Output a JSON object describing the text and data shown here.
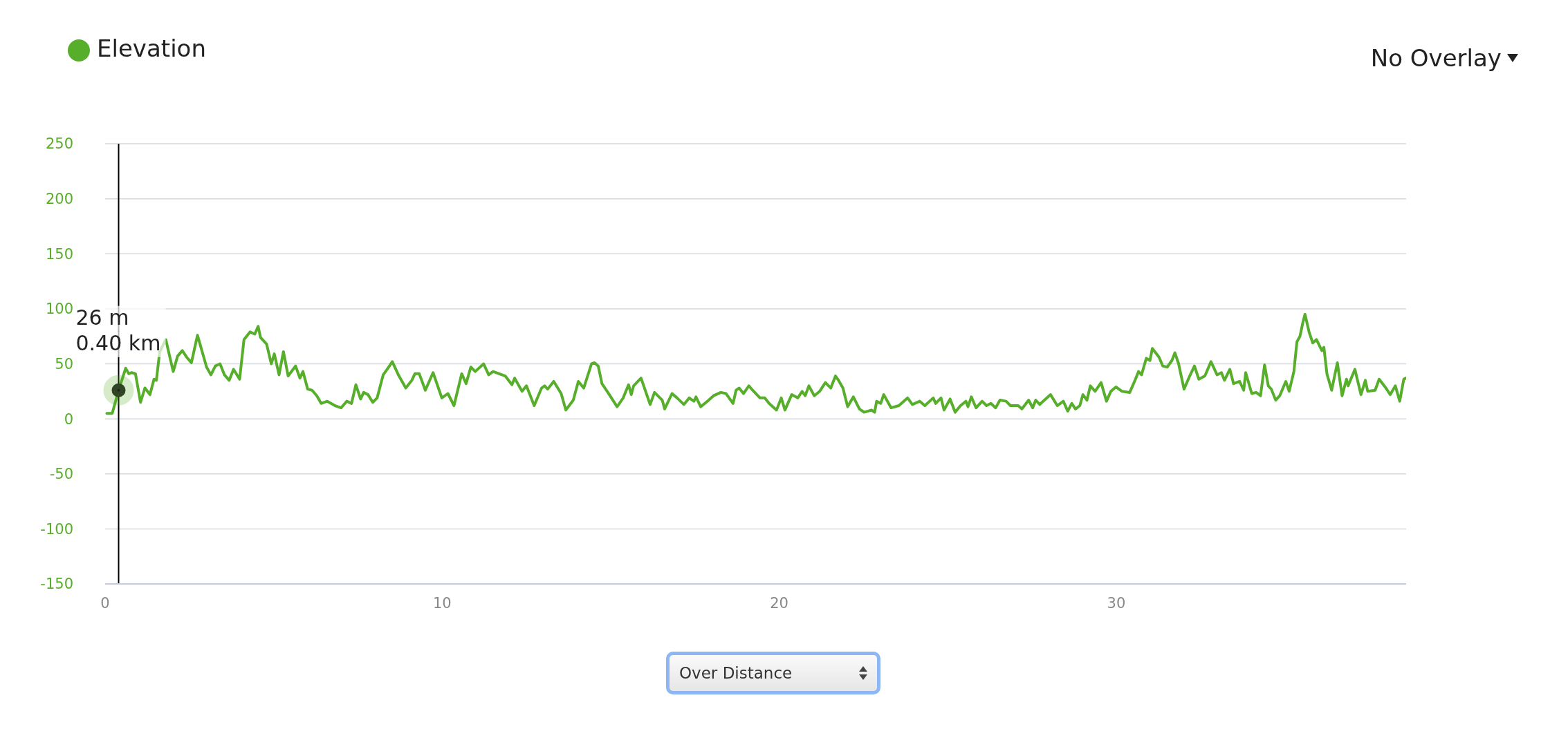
{
  "chart_data": {
    "type": "line",
    "legend": "top left",
    "grid": "y",
    "marker": "none",
    "line_style": "solid",
    "xlim": [
      0,
      38.6
    ],
    "xticks": [
      0,
      10,
      20,
      30
    ],
    "ylim": [
      -150,
      250
    ],
    "yticks": [
      -150,
      -100,
      -50,
      0,
      50,
      100,
      150,
      200,
      250
    ],
    "ref_lines": [
      {
        "axis": "x",
        "value": 0.4,
        "color": "#000000"
      }
    ],
    "annotations": [
      {
        "text": "26 m",
        "x": 0.4,
        "y": 26
      },
      {
        "text": "0.40 km",
        "x": 0.4,
        "y": 26
      },
      "No Overlay",
      "Over Distance"
    ],
    "series": [
      {
        "name": "Elevation",
        "color": "#56ae2a",
        "x": [
          0.05,
          0.21,
          0.4,
          0.61,
          0.7,
          0.79,
          0.9,
          1.05,
          1.18,
          1.33,
          1.45,
          1.52,
          1.62,
          1.8,
          2.02,
          2.15,
          2.29,
          2.42,
          2.56,
          2.74,
          3.01,
          3.14,
          3.27,
          3.41,
          3.54,
          3.68,
          3.81,
          3.99,
          4.12,
          4.3,
          4.44,
          4.54,
          4.61,
          4.79,
          4.93,
          5.02,
          5.16,
          5.29,
          5.43,
          5.65,
          5.78,
          5.87,
          6.01,
          6.14,
          6.28,
          6.41,
          6.59,
          6.82,
          7.0,
          7.17,
          7.31,
          7.44,
          7.58,
          7.67,
          7.8,
          7.94,
          8.07,
          8.25,
          8.39,
          8.52,
          8.7,
          8.92,
          9.1,
          9.19,
          9.32,
          9.5,
          9.73,
          9.99,
          10.17,
          10.35,
          10.58,
          10.71,
          10.85,
          10.98,
          11.23,
          11.38,
          11.51,
          11.87,
          12.07,
          12.15,
          12.37,
          12.5,
          12.73,
          12.95,
          13.04,
          13.13,
          13.31,
          13.53,
          13.67,
          13.89,
          14.04,
          14.2,
          14.43,
          14.52,
          14.63,
          14.74,
          14.96,
          15.19,
          15.37,
          15.53,
          15.61,
          15.68,
          15.9,
          16.17,
          16.3,
          16.53,
          16.6,
          16.82,
          16.97,
          17.17,
          17.33,
          17.47,
          17.53,
          17.67,
          17.87,
          18.05,
          18.27,
          18.42,
          18.63,
          18.72,
          18.81,
          18.94,
          19.1,
          19.21,
          19.43,
          19.57,
          19.7,
          19.92,
          20.06,
          20.17,
          20.37,
          20.55,
          20.68,
          20.77,
          20.88,
          21.04,
          21.2,
          21.37,
          21.53,
          21.67,
          21.76,
          21.89,
          22.03,
          22.2,
          22.38,
          22.52,
          22.74,
          22.83,
          22.89,
          23.01,
          23.1,
          23.32,
          23.55,
          23.81,
          23.95,
          24.17,
          24.32,
          24.57,
          24.64,
          24.8,
          24.89,
          25.07,
          25.22,
          25.38,
          25.54,
          25.6,
          25.7,
          25.84,
          26.02,
          26.15,
          26.28,
          26.42,
          26.55,
          26.73,
          26.86,
          27.09,
          27.2,
          27.4,
          27.52,
          27.61,
          27.73,
          27.83,
          28.05,
          28.25,
          28.43,
          28.56,
          28.68,
          28.79,
          28.92,
          29.01,
          29.13,
          29.23,
          29.37,
          29.55,
          29.71,
          29.84,
          29.99,
          30.17,
          30.4,
          30.57,
          30.66,
          30.75,
          30.89,
          31.0,
          31.07,
          31.27,
          31.38,
          31.51,
          31.65,
          31.74,
          31.85,
          32.01,
          32.18,
          32.32,
          32.45,
          32.63,
          32.81,
          32.99,
          33.12,
          33.21,
          33.37,
          33.48,
          33.66,
          33.78,
          33.84,
          34.02,
          34.15,
          34.28,
          34.4,
          34.51,
          34.6,
          34.73,
          34.85,
          35.03,
          35.13,
          35.27,
          35.36,
          35.45,
          35.54,
          35.6,
          35.72,
          35.83,
          35.94,
          36.1,
          36.16,
          36.25,
          36.39,
          36.56,
          36.7,
          36.83,
          36.88,
          37.08,
          37.26,
          37.39,
          37.46,
          37.68,
          37.8,
          38.0,
          38.13,
          38.28,
          38.41,
          38.53,
          38.59
        ],
        "values": [
          5,
          5,
          26,
          46,
          41,
          42,
          41,
          15,
          28,
          22,
          36,
          35,
          61,
          72,
          43,
          57,
          62,
          56,
          51,
          76,
          47,
          40,
          48,
          50,
          40,
          35,
          45,
          36,
          72,
          79,
          77,
          84,
          74,
          68,
          50,
          59,
          40,
          61,
          39,
          48,
          37,
          43,
          27,
          26,
          21,
          14,
          16,
          12,
          10,
          16,
          14,
          31,
          18,
          24,
          22,
          15,
          19,
          40,
          46,
          52,
          40,
          28,
          35,
          41,
          41,
          26,
          42,
          19,
          23,
          12,
          41,
          32,
          47,
          43,
          50,
          40,
          43,
          39,
          31,
          37,
          25,
          30,
          12,
          28,
          30,
          27,
          34,
          23,
          8,
          17,
          34,
          28,
          50,
          51,
          48,
          32,
          22,
          11,
          19,
          31,
          22,
          30,
          37,
          13,
          24,
          17,
          9,
          23,
          19,
          13,
          19,
          16,
          20,
          11,
          16,
          21,
          24,
          23,
          14,
          26,
          28,
          23,
          30,
          26,
          19,
          19,
          14,
          8,
          19,
          8,
          22,
          19,
          25,
          21,
          30,
          21,
          25,
          33,
          28,
          39,
          35,
          28,
          11,
          20,
          9,
          6,
          8,
          6,
          16,
          14,
          22,
          10,
          12,
          19,
          13,
          16,
          12,
          19,
          14,
          19,
          8,
          18,
          6,
          12,
          16,
          11,
          20,
          10,
          16,
          12,
          14,
          10,
          17,
          16,
          12,
          12,
          9,
          17,
          10,
          17,
          13,
          16,
          22,
          12,
          16,
          7,
          14,
          9,
          12,
          22,
          17,
          30,
          25,
          33,
          16,
          25,
          29,
          25,
          24,
          36,
          43,
          40,
          55,
          53,
          64,
          56,
          48,
          47,
          53,
          60,
          50,
          27,
          39,
          48,
          36,
          39,
          52,
          40,
          42,
          35,
          45,
          32,
          34,
          26,
          42,
          23,
          24,
          21,
          49,
          30,
          27,
          17,
          21,
          34,
          25,
          43,
          70,
          75,
          88,
          95,
          79,
          69,
          72,
          62,
          65,
          41,
          26,
          51,
          21,
          36,
          30,
          45,
          22,
          35,
          25,
          26,
          36,
          28,
          22,
          30,
          16,
          36,
          37
        ]
      }
    ]
  }
}
